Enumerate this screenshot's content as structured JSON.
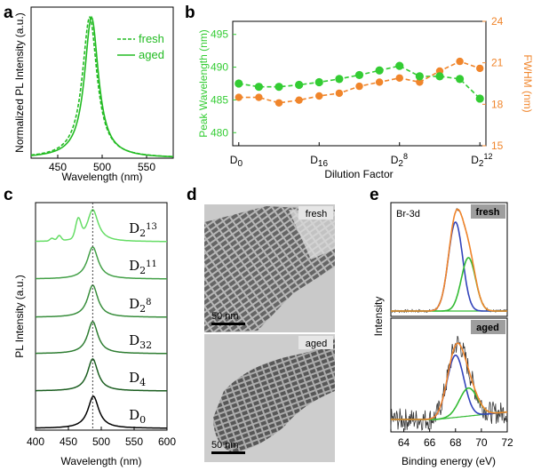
{
  "panel_labels": [
    "a",
    "b",
    "c",
    "d",
    "e"
  ],
  "chart_data": [
    {
      "id": "a",
      "type": "line",
      "xlabel": "Wavelength (nm)",
      "ylabel": "Normalized PL Intensity (a.u.)",
      "xlim": [
        420,
        580
      ],
      "xticks": [
        450,
        500,
        550
      ],
      "ylim": [
        0,
        1.05
      ],
      "series": [
        {
          "name": "fresh",
          "style": "dashed",
          "color": "#22bb22",
          "center": 486,
          "fwhm": 20
        },
        {
          "name": "aged",
          "style": "solid",
          "color": "#22bb22",
          "center": 488,
          "fwhm": 19
        }
      ]
    },
    {
      "id": "b",
      "type": "line",
      "xlabel": "Dilution Factor",
      "ylabel": "Peak Wavelength (nm)",
      "y2label": "FWHM (nm)",
      "xtick_labels": [
        "D0",
        "D16",
        "D2^8",
        "D2^12"
      ],
      "xtick_positions": [
        0,
        4,
        8,
        12
      ],
      "xlim": [
        -0.3,
        12.3
      ],
      "ylim": [
        478,
        497
      ],
      "yticks": [
        480,
        485,
        490,
        495
      ],
      "y2lim": [
        15,
        24
      ],
      "y2ticks": [
        15,
        18,
        21,
        24
      ],
      "x": [
        0,
        1,
        2,
        3,
        4,
        5,
        6,
        7,
        8,
        9,
        10,
        11,
        12
      ],
      "series": [
        {
          "name": "Peak Wavelength",
          "axis": "left",
          "color": "#33cc33",
          "values": [
            487.5,
            487.0,
            487.0,
            487.3,
            487.7,
            488.2,
            488.8,
            489.5,
            490.2,
            488.6,
            488.6,
            488.2,
            485.2
          ]
        },
        {
          "name": "FWHM",
          "axis": "right",
          "color": "#f0852b",
          "values": [
            18.5,
            18.5,
            18.1,
            18.3,
            18.6,
            18.8,
            19.3,
            19.6,
            19.9,
            19.6,
            20.4,
            21.1,
            20.6
          ]
        }
      ]
    },
    {
      "id": "c",
      "type": "line",
      "xlabel": "Wavelength (nm)",
      "ylabel": "PL Intensity (a.u.)",
      "xlim": [
        400,
        600
      ],
      "xticks": [
        400,
        450,
        500,
        550,
        600
      ],
      "reference_line_nm": 487,
      "series": [
        {
          "name": "D0",
          "color": "#000000",
          "center": 488,
          "fwhm": 20
        },
        {
          "name": "D4",
          "color": "#1b5e20",
          "center": 487,
          "fwhm": 19
        },
        {
          "name": "D32",
          "color": "#2e7d32",
          "center": 487,
          "fwhm": 19
        },
        {
          "name": "D2^8",
          "color": "#388e3c",
          "center": 487,
          "fwhm": 19
        },
        {
          "name": "D2^11",
          "color": "#43a047",
          "center": 487,
          "fwhm": 20
        },
        {
          "name": "D2^13",
          "color": "#66dd66",
          "center": 487,
          "fwhm": 20,
          "extra_peaks": [
            [
              465,
              0.55,
              4
            ],
            [
              436,
              0.15,
              3
            ],
            [
              425,
              0.08,
              3
            ]
          ]
        }
      ]
    },
    {
      "id": "e",
      "type": "line",
      "xlabel": "Binding energy (eV)",
      "ylabel": "Intensity",
      "xlim": [
        63,
        72
      ],
      "xticks": [
        64,
        66,
        68,
        70,
        72
      ],
      "element_label": "Br-3d",
      "subpanels": [
        {
          "name": "fresh",
          "components": [
            {
              "center": 68.0,
              "height": 1.0,
              "width": 0.55,
              "color": "#3344bb"
            },
            {
              "center": 69.0,
              "height": 0.6,
              "width": 0.55,
              "color": "#33bb33"
            }
          ]
        },
        {
          "name": "aged",
          "components": [
            {
              "center": 68.0,
              "height": 1.0,
              "width": 0.65,
              "color": "#3344bb"
            },
            {
              "center": 69.0,
              "height": 0.45,
              "width": 0.7,
              "color": "#33bb33"
            }
          ]
        }
      ]
    }
  ],
  "panel_a": {
    "legend": [
      "fresh",
      "aged"
    ]
  },
  "panel_b": {
    "d_prefix": "D",
    "tick_subs": [
      "0",
      "16",
      "2",
      "2"
    ],
    "tick_sups": [
      "",
      "",
      "8",
      "12"
    ]
  },
  "panel_c": {
    "d_prefix": "D",
    "label_subs": [
      "0",
      "4",
      "32",
      "2",
      "2",
      "2"
    ],
    "label_sups": [
      "",
      "",
      "",
      "8",
      "11",
      "13"
    ]
  },
  "panel_d": {
    "top_tag": "fresh",
    "bottom_tag": "aged",
    "scale_label": "50 nm"
  },
  "panel_e": {
    "top_tag": "fresh",
    "bottom_tag": "aged"
  }
}
